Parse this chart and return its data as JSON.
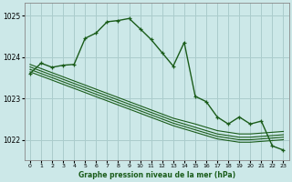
{
  "title": "Graphe pression niveau de la mer (hPa)",
  "bg_color": "#cce8e8",
  "grid_color": "#aacccc",
  "line_color": "#1a5c1a",
  "xlim": [
    -0.5,
    23.5
  ],
  "ylim": [
    1021.5,
    1025.3
  ],
  "yticks": [
    1022,
    1023,
    1024,
    1025
  ],
  "xtick_labels": [
    "0",
    "1",
    "2",
    "3",
    "4",
    "5",
    "6",
    "7",
    "8",
    "9",
    "10",
    "11",
    "12",
    "13",
    "14",
    "15",
    "16",
    "17",
    "18",
    "19",
    "20",
    "21",
    "22",
    "23"
  ],
  "main_line_x": [
    0,
    1,
    2,
    3,
    4,
    5,
    6,
    7,
    8,
    9,
    10,
    11,
    12,
    13,
    14,
    15,
    16,
    17,
    18,
    19,
    20,
    21,
    22,
    23
  ],
  "main_line_y": [
    1023.6,
    1023.85,
    1023.75,
    1023.8,
    1023.82,
    1024.45,
    1024.58,
    1024.85,
    1024.88,
    1024.93,
    1024.68,
    1024.42,
    1024.1,
    1023.78,
    1024.35,
    1023.05,
    1022.92,
    1022.55,
    1022.38,
    1022.55,
    1022.38,
    1022.45,
    1021.85,
    1021.75
  ],
  "ref_lines": [
    [
      1023.82,
      1023.72,
      1023.62,
      1023.52,
      1023.42,
      1023.32,
      1023.22,
      1023.12,
      1023.02,
      1022.92,
      1022.82,
      1022.72,
      1022.62,
      1022.52,
      1022.45,
      1022.38,
      1022.3,
      1022.22,
      1022.18,
      1022.14,
      1022.14,
      1022.16,
      1022.18,
      1022.2
    ],
    [
      1023.76,
      1023.66,
      1023.56,
      1023.46,
      1023.36,
      1023.26,
      1023.16,
      1023.06,
      1022.96,
      1022.86,
      1022.76,
      1022.66,
      1022.56,
      1022.46,
      1022.38,
      1022.3,
      1022.22,
      1022.14,
      1022.1,
      1022.06,
      1022.06,
      1022.08,
      1022.1,
      1022.12
    ],
    [
      1023.7,
      1023.6,
      1023.5,
      1023.4,
      1023.3,
      1023.2,
      1023.1,
      1023.0,
      1022.9,
      1022.8,
      1022.7,
      1022.6,
      1022.5,
      1022.4,
      1022.32,
      1022.24,
      1022.16,
      1022.08,
      1022.04,
      1022.0,
      1022.0,
      1022.02,
      1022.04,
      1022.06
    ],
    [
      1023.64,
      1023.54,
      1023.44,
      1023.34,
      1023.24,
      1023.14,
      1023.04,
      1022.94,
      1022.84,
      1022.74,
      1022.64,
      1022.54,
      1022.44,
      1022.34,
      1022.26,
      1022.18,
      1022.1,
      1022.02,
      1021.98,
      1021.94,
      1021.94,
      1021.96,
      1021.98,
      1022.0
    ]
  ]
}
